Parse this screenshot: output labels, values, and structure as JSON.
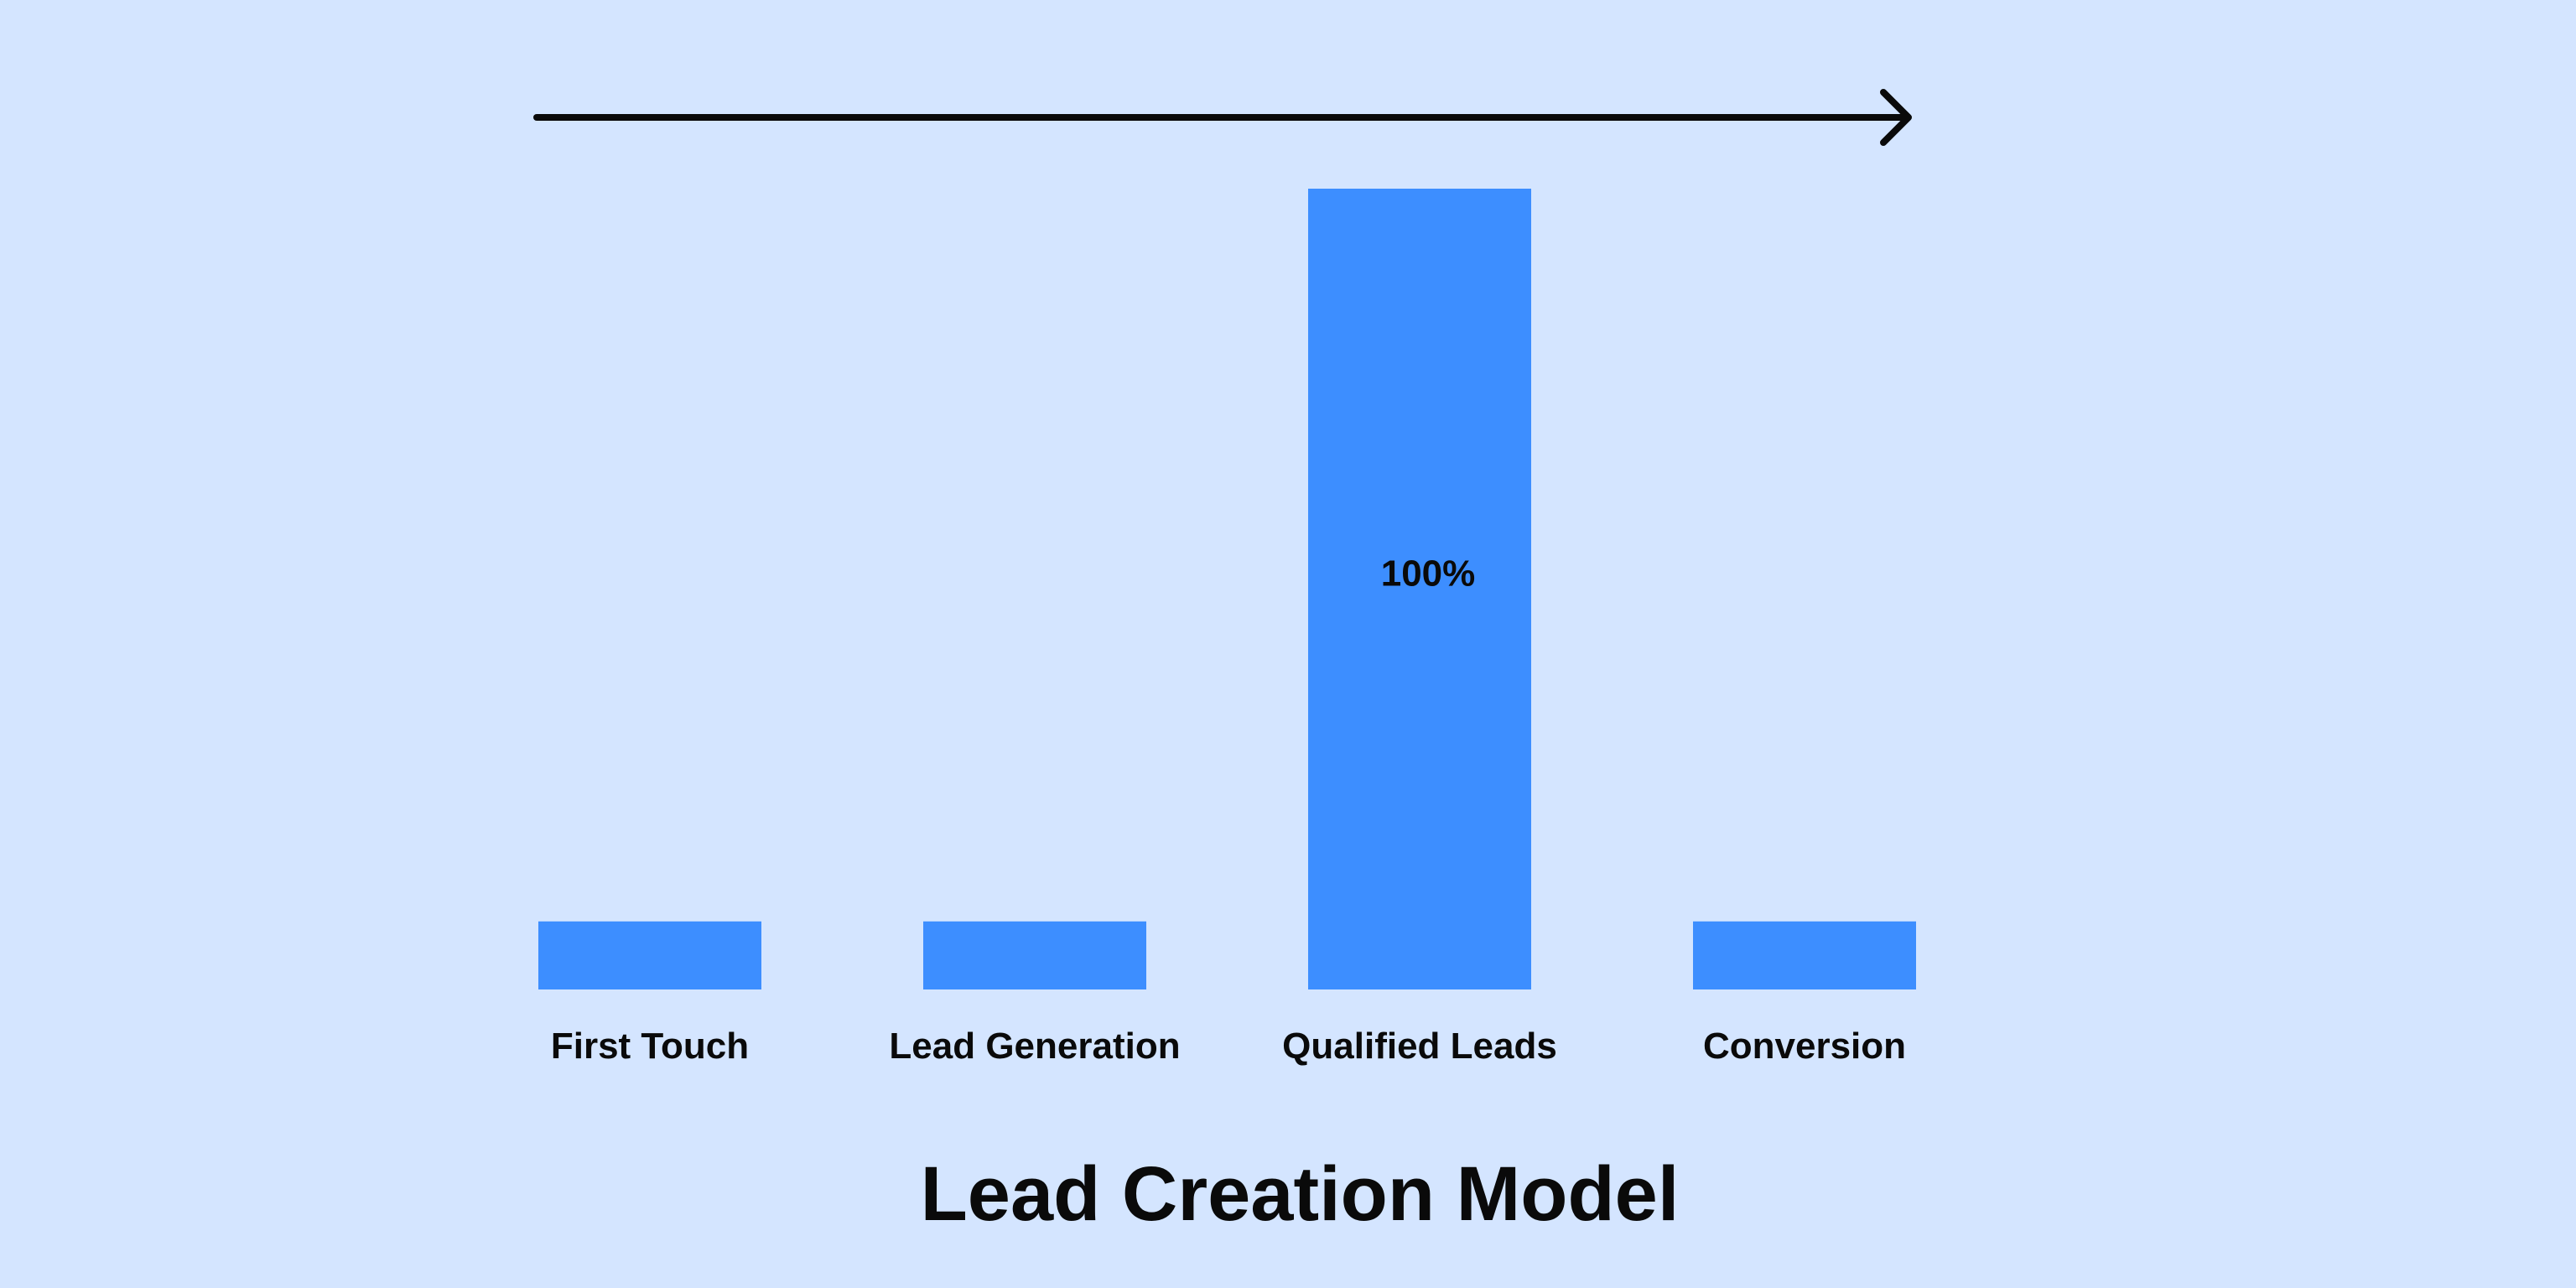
{
  "chart_data": {
    "type": "bar",
    "title": "Lead Creation Model",
    "categories": [
      "First Touch",
      "Lead Generation",
      "Qualified Leads",
      "Conversion"
    ],
    "values": [
      8.5,
      8.5,
      100,
      8.5
    ],
    "data_labels": [
      "",
      "",
      "100%",
      ""
    ],
    "ylim": [
      0,
      100
    ],
    "grid": false,
    "legend": "none",
    "bar_color": "#3d8eff",
    "arrow_color": "#0a0a0a",
    "background_color": "#d4e5ff",
    "text_color": "#0a0a0a"
  }
}
